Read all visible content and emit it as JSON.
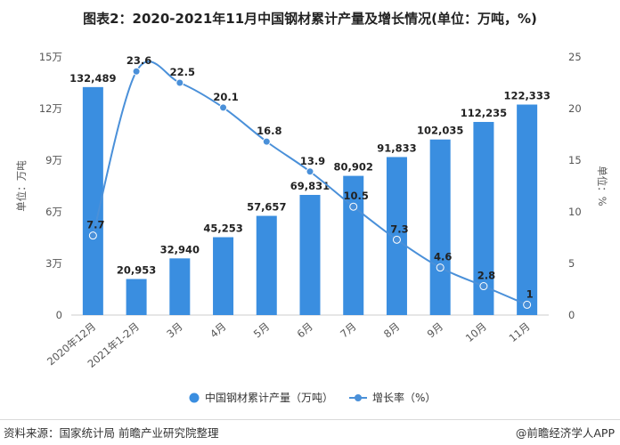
{
  "title": "图表2：2020-2021年11月中国钢材累计产量及增长情况(单位：万吨，%)",
  "source": "资料来源：国家统计局 前瞻产业研究院整理",
  "brand": "@前瞻经济学人APP",
  "colors": {
    "bar": "#3a8ee0",
    "line": "#4a90d9",
    "axis_text": "#555555",
    "grid": "#e6e6e6"
  },
  "chart_data": {
    "type": "bar",
    "categories": [
      "2020年12月",
      "2021年1-2月",
      "3月",
      "4月",
      "5月",
      "6月",
      "7月",
      "8月",
      "9月",
      "10月",
      "11月"
    ],
    "series": [
      {
        "name": "中国钢材累计产量（万吨）",
        "type": "bar",
        "axis": "left",
        "values": [
          132489,
          20953,
          32940,
          45253,
          57657,
          69831,
          80902,
          91833,
          102035,
          112235,
          122333
        ],
        "labels": [
          "132,489",
          "20,953",
          "32,940",
          "45,253",
          "57,657",
          "69,831",
          "80,902",
          "91,833",
          "102,035",
          "112,235",
          "122,333"
        ]
      },
      {
        "name": "增长率（%）",
        "type": "line",
        "axis": "right",
        "values": [
          7.7,
          23.6,
          22.5,
          20.1,
          16.8,
          13.9,
          10.5,
          7.3,
          4.6,
          2.8,
          1
        ],
        "labels": [
          "7.7",
          "23.6",
          "22.5",
          "20.1",
          "16.8",
          "13.9",
          "10.5",
          "7.3",
          "4.6",
          "2.8",
          "1"
        ]
      }
    ],
    "y_left": {
      "label": "单位：万吨",
      "range": [
        0,
        150000
      ],
      "ticks": [
        0,
        30000,
        60000,
        90000,
        120000,
        150000
      ],
      "tick_labels": [
        "0",
        "3万",
        "6万",
        "9万",
        "12万",
        "15万"
      ]
    },
    "y_right": {
      "label": "单位：%",
      "range": [
        0,
        25
      ],
      "ticks": [
        0,
        5,
        10,
        15,
        20,
        25
      ],
      "tick_labels": [
        "0",
        "5",
        "10",
        "15",
        "20",
        "25"
      ]
    },
    "grid": false,
    "legend": "bottom-center"
  }
}
